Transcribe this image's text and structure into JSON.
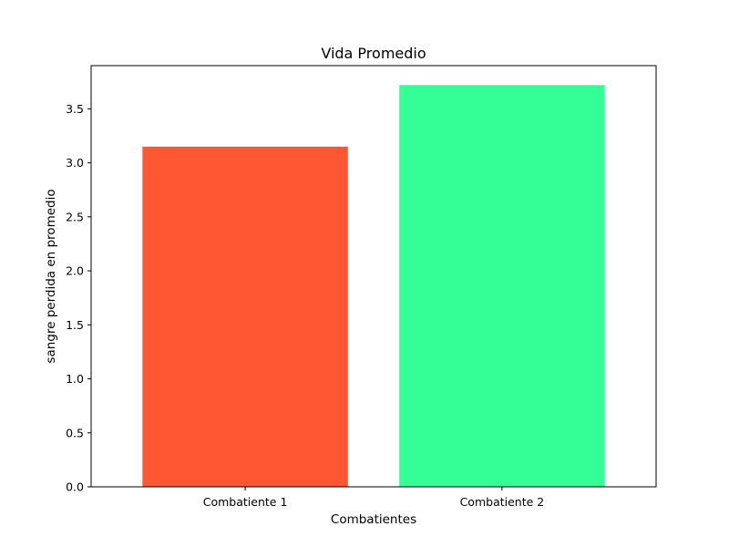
{
  "chart_data": {
    "type": "bar",
    "title": "Vida Promedio",
    "xlabel": "Combatientes",
    "ylabel": "sangre perdida en promedio",
    "categories": [
      "Combatiente 1",
      "Combatiente 2"
    ],
    "values": [
      3.15,
      3.72
    ],
    "colors": [
      "#ff5733",
      "#33ff96"
    ],
    "ylim": [
      0,
      3.9
    ],
    "yticks": [
      0.0,
      0.5,
      1.0,
      1.5,
      2.0,
      2.5,
      3.0,
      3.5
    ],
    "ytick_labels": [
      "0.0",
      "0.5",
      "1.0",
      "1.5",
      "2.0",
      "2.5",
      "3.0",
      "3.5"
    ],
    "grid": false,
    "legend": false
  }
}
